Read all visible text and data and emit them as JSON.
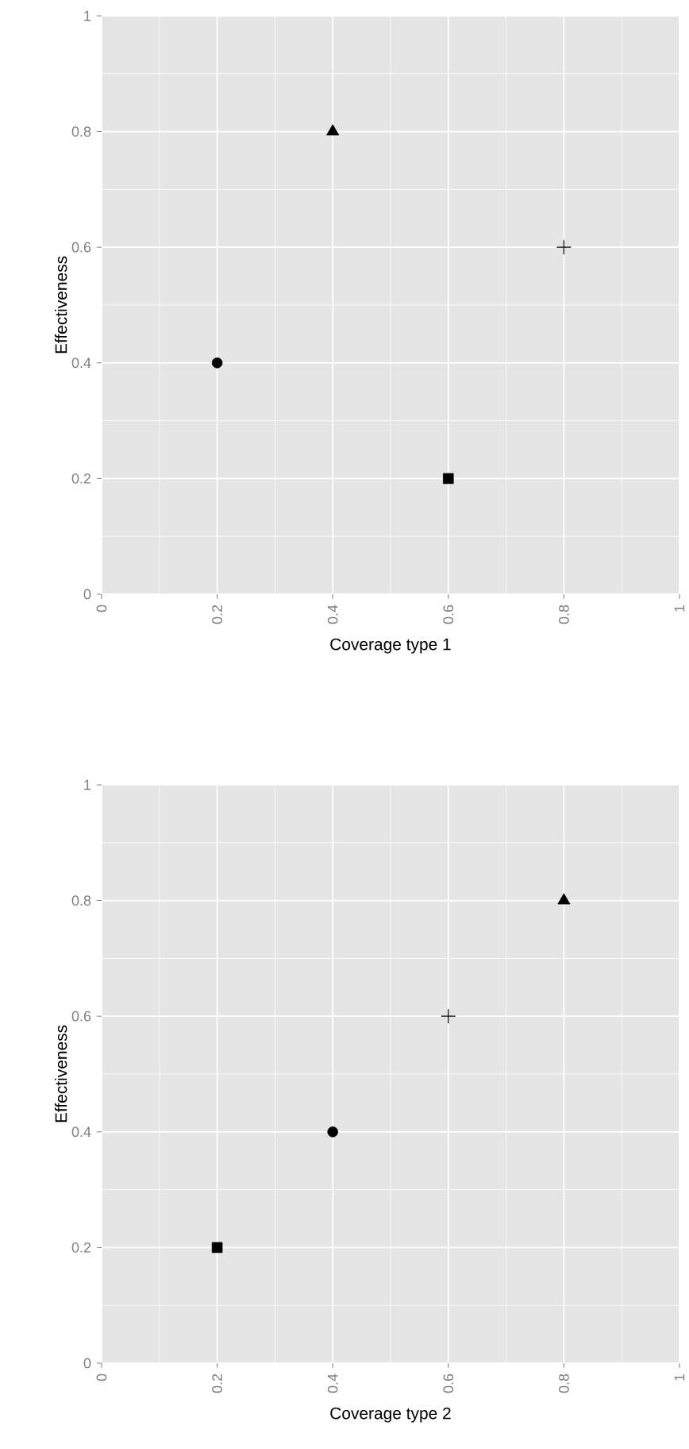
{
  "chart_data": [
    {
      "type": "scatter",
      "xlabel": "Coverage type 1",
      "ylabel": "Effectiveness",
      "xlim": [
        0,
        1
      ],
      "ylim": [
        0,
        1
      ],
      "xticks": [
        0,
        0.2,
        0.4,
        0.6,
        0.8,
        1
      ],
      "yticks": [
        0,
        0.2,
        0.4,
        0.6,
        0.8,
        1
      ],
      "grid": true,
      "series": [
        {
          "color": "#000000",
          "marker": "circle",
          "x": [
            0.2
          ],
          "values": [
            0.4
          ]
        },
        {
          "color": "#000000",
          "marker": "triangle",
          "x": [
            0.4
          ],
          "values": [
            0.8
          ]
        },
        {
          "color": "#000000",
          "marker": "square",
          "x": [
            0.6
          ],
          "values": [
            0.2
          ]
        },
        {
          "color": "#000000",
          "marker": "cross",
          "x": [
            0.8
          ],
          "values": [
            0.6
          ]
        }
      ]
    },
    {
      "type": "scatter",
      "xlabel": "Coverage type 2",
      "ylabel": "Effectiveness",
      "xlim": [
        0,
        1
      ],
      "ylim": [
        0,
        1
      ],
      "xticks": [
        0,
        0.2,
        0.4,
        0.6,
        0.8,
        1
      ],
      "yticks": [
        0,
        0.2,
        0.4,
        0.6,
        0.8,
        1
      ],
      "grid": true,
      "series": [
        {
          "color": "#000000",
          "marker": "square",
          "x": [
            0.2
          ],
          "values": [
            0.2
          ]
        },
        {
          "color": "#000000",
          "marker": "circle",
          "x": [
            0.4
          ],
          "values": [
            0.4
          ]
        },
        {
          "color": "#000000",
          "marker": "cross",
          "x": [
            0.6
          ],
          "values": [
            0.6
          ]
        },
        {
          "color": "#000000",
          "marker": "triangle",
          "x": [
            0.8
          ],
          "values": [
            0.8
          ]
        }
      ]
    }
  ]
}
